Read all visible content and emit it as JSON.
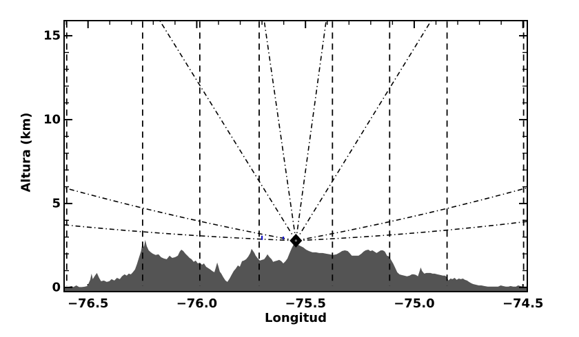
{
  "figure": {
    "background": "#ffffff"
  },
  "chart_data": {
    "type": "area",
    "title": "",
    "xlabel": "Longitud",
    "ylabel": "Altura (km)",
    "xlim": [
      -76.61,
      -74.48
    ],
    "ylim": [
      -0.25,
      15.9
    ],
    "grid": false,
    "x_major_ticks": [
      -76.5,
      -76.0,
      -75.5,
      -75.0,
      -74.5
    ],
    "x_tick_labels": [
      "−76.5",
      "−76.0",
      "−75.5",
      "−75.0",
      "−74.5"
    ],
    "x_minor_step": 0.1,
    "y_major_ticks": [
      0,
      5,
      10,
      15
    ],
    "y_tick_labels": [
      "0",
      "5",
      "10",
      "15"
    ],
    "y_minor_step": 1,
    "colors": {
      "terrain": "#545454",
      "lines": "#000000",
      "blue_marks": "#1515cc",
      "frame": "#000000"
    },
    "radar": {
      "lon": -75.544,
      "alt_km": 2.79,
      "marker": "filled-diamond-star"
    },
    "beams_straight": [
      {
        "top_lon": -76.17,
        "top_alt": 15.9
      },
      {
        "top_lon": -75.69,
        "top_alt": 15.9
      },
      {
        "top_lon": -75.405,
        "top_alt": 15.9
      },
      {
        "top_lon": -74.922,
        "top_alt": 15.9
      }
    ],
    "beams_curved": [
      {
        "end": [
          -76.61,
          5.94
        ],
        "ctrl": [
          -76.08,
          4.06
        ]
      },
      {
        "end": [
          -76.61,
          3.73
        ],
        "ctrl": [
          -76.08,
          3.05
        ]
      },
      {
        "end": [
          -74.48,
          5.94
        ],
        "ctrl": [
          -75.01,
          4.06
        ]
      },
      {
        "end": [
          -74.48,
          3.93
        ],
        "ctrl": [
          -75.01,
          3.1
        ]
      }
    ],
    "vertical_dashed_lons": [
      -76.598,
      -76.249,
      -75.986,
      -75.713,
      -75.376,
      -75.113,
      -74.849,
      -74.497
    ],
    "blue_marks": [
      {
        "lon": -75.7,
        "alt_top": 3.08,
        "alt_bot": 2.83
      },
      {
        "lon": -75.602,
        "alt_top": 3.03,
        "alt_bot": 2.87
      }
    ],
    "terrain_profile": [
      [
        -76.611,
        0.02
      ],
      [
        -76.598,
        0.02
      ],
      [
        -76.586,
        0.04
      ],
      [
        -76.576,
        0.08
      ],
      [
        -76.567,
        0.02
      ],
      [
        -76.554,
        0.12
      ],
      [
        -76.541,
        0.02
      ],
      [
        -76.529,
        0.02
      ],
      [
        -76.516,
        0.04
      ],
      [
        -76.503,
        0.08
      ],
      [
        -76.49,
        0.45
      ],
      [
        -76.484,
        0.82
      ],
      [
        -76.478,
        0.49
      ],
      [
        -76.468,
        0.7
      ],
      [
        -76.459,
        0.86
      ],
      [
        -76.449,
        0.57
      ],
      [
        -76.44,
        0.37
      ],
      [
        -76.427,
        0.41
      ],
      [
        -76.414,
        0.33
      ],
      [
        -76.402,
        0.37
      ],
      [
        -76.392,
        0.49
      ],
      [
        -76.379,
        0.41
      ],
      [
        -76.367,
        0.57
      ],
      [
        -76.354,
        0.49
      ],
      [
        -76.344,
        0.66
      ],
      [
        -76.332,
        0.78
      ],
      [
        -76.322,
        0.7
      ],
      [
        -76.313,
        0.82
      ],
      [
        -76.303,
        0.78
      ],
      [
        -76.294,
        0.9
      ],
      [
        -76.284,
        1.07
      ],
      [
        -76.275,
        1.39
      ],
      [
        -76.265,
        1.8
      ],
      [
        -76.256,
        2.17
      ],
      [
        -76.249,
        2.7
      ],
      [
        -76.243,
        2.38
      ],
      [
        -76.237,
        2.83
      ],
      [
        -76.23,
        2.46
      ],
      [
        -76.221,
        2.21
      ],
      [
        -76.211,
        2.09
      ],
      [
        -76.202,
        2.01
      ],
      [
        -76.189,
        1.93
      ],
      [
        -76.176,
        1.97
      ],
      [
        -76.164,
        1.8
      ],
      [
        -76.151,
        1.72
      ],
      [
        -76.138,
        1.68
      ],
      [
        -76.125,
        1.89
      ],
      [
        -76.113,
        1.76
      ],
      [
        -76.1,
        1.8
      ],
      [
        -76.087,
        1.89
      ],
      [
        -76.078,
        2.13
      ],
      [
        -76.071,
        2.25
      ],
      [
        -76.062,
        2.17
      ],
      [
        -76.052,
        2.01
      ],
      [
        -76.043,
        1.89
      ],
      [
        -76.033,
        1.76
      ],
      [
        -76.024,
        1.68
      ],
      [
        -76.014,
        1.52
      ],
      [
        -76.005,
        1.6
      ],
      [
        -75.995,
        1.43
      ],
      [
        -75.986,
        1.48
      ],
      [
        -75.976,
        1.35
      ],
      [
        -75.967,
        1.43
      ],
      [
        -75.957,
        1.23
      ],
      [
        -75.948,
        1.15
      ],
      [
        -75.938,
        1.07
      ],
      [
        -75.929,
        0.98
      ],
      [
        -75.919,
        0.9
      ],
      [
        -75.913,
        1.15
      ],
      [
        -75.906,
        1.48
      ],
      [
        -75.9,
        1.23
      ],
      [
        -75.894,
        0.94
      ],
      [
        -75.887,
        0.82
      ],
      [
        -75.878,
        0.61
      ],
      [
        -75.868,
        0.41
      ],
      [
        -75.859,
        0.33
      ],
      [
        -75.849,
        0.53
      ],
      [
        -75.84,
        0.74
      ],
      [
        -75.83,
        0.98
      ],
      [
        -75.821,
        1.11
      ],
      [
        -75.811,
        1.31
      ],
      [
        -75.802,
        1.23
      ],
      [
        -75.792,
        1.56
      ],
      [
        -75.783,
        1.6
      ],
      [
        -75.773,
        1.68
      ],
      [
        -75.763,
        1.84
      ],
      [
        -75.754,
        2.05
      ],
      [
        -75.748,
        2.3
      ],
      [
        -75.741,
        2.17
      ],
      [
        -75.735,
        2.05
      ],
      [
        -75.729,
        1.89
      ],
      [
        -75.719,
        1.72
      ],
      [
        -75.71,
        1.6
      ],
      [
        -75.7,
        1.64
      ],
      [
        -75.69,
        1.68
      ],
      [
        -75.681,
        1.84
      ],
      [
        -75.675,
        1.97
      ],
      [
        -75.665,
        1.8
      ],
      [
        -75.656,
        1.68
      ],
      [
        -75.649,
        1.52
      ],
      [
        -75.64,
        1.56
      ],
      [
        -75.63,
        1.6
      ],
      [
        -75.621,
        1.64
      ],
      [
        -75.611,
        1.56
      ],
      [
        -75.602,
        1.43
      ],
      [
        -75.592,
        1.56
      ],
      [
        -75.583,
        1.72
      ],
      [
        -75.573,
        2.05
      ],
      [
        -75.563,
        2.34
      ],
      [
        -75.554,
        2.58
      ],
      [
        -75.544,
        2.7
      ],
      [
        -75.535,
        2.54
      ],
      [
        -75.522,
        2.46
      ],
      [
        -75.51,
        2.38
      ],
      [
        -75.497,
        2.25
      ],
      [
        -75.484,
        2.17
      ],
      [
        -75.468,
        2.09
      ],
      [
        -75.452,
        2.09
      ],
      [
        -75.437,
        2.05
      ],
      [
        -75.421,
        2.05
      ],
      [
        -75.405,
        2.01
      ],
      [
        -75.389,
        1.97
      ],
      [
        -75.373,
        1.93
      ],
      [
        -75.357,
        1.97
      ],
      [
        -75.341,
        2.09
      ],
      [
        -75.332,
        2.17
      ],
      [
        -75.319,
        2.21
      ],
      [
        -75.306,
        2.17
      ],
      [
        -75.297,
        2.05
      ],
      [
        -75.287,
        1.89
      ],
      [
        -75.271,
        1.89
      ],
      [
        -75.256,
        1.89
      ],
      [
        -75.243,
        2.01
      ],
      [
        -75.233,
        2.13
      ],
      [
        -75.224,
        2.21
      ],
      [
        -75.211,
        2.25
      ],
      [
        -75.202,
        2.17
      ],
      [
        -75.192,
        2.21
      ],
      [
        -75.183,
        2.13
      ],
      [
        -75.173,
        2.05
      ],
      [
        -75.163,
        2.13
      ],
      [
        -75.154,
        2.21
      ],
      [
        -75.144,
        2.21
      ],
      [
        -75.135,
        2.13
      ],
      [
        -75.125,
        1.89
      ],
      [
        -75.116,
        1.84
      ],
      [
        -75.11,
        1.72
      ],
      [
        -75.103,
        1.56
      ],
      [
        -75.097,
        1.43
      ],
      [
        -75.087,
        1.15
      ],
      [
        -75.078,
        0.9
      ],
      [
        -75.068,
        0.78
      ],
      [
        -75.059,
        0.74
      ],
      [
        -75.046,
        0.7
      ],
      [
        -75.033,
        0.66
      ],
      [
        -75.021,
        0.7
      ],
      [
        -75.011,
        0.78
      ],
      [
        -75.002,
        0.78
      ],
      [
        -74.992,
        0.74
      ],
      [
        -74.983,
        0.66
      ],
      [
        -74.976,
        0.94
      ],
      [
        -74.97,
        1.19
      ],
      [
        -74.964,
        0.98
      ],
      [
        -74.954,
        0.82
      ],
      [
        -74.944,
        0.86
      ],
      [
        -74.935,
        0.86
      ],
      [
        -74.925,
        0.86
      ],
      [
        -74.916,
        0.82
      ],
      [
        -74.906,
        0.82
      ],
      [
        -74.894,
        0.78
      ],
      [
        -74.881,
        0.74
      ],
      [
        -74.868,
        0.7
      ],
      [
        -74.859,
        0.7
      ],
      [
        -74.849,
        0.61
      ],
      [
        -74.843,
        0.41
      ],
      [
        -74.833,
        0.53
      ],
      [
        -74.824,
        0.49
      ],
      [
        -74.814,
        0.57
      ],
      [
        -74.805,
        0.45
      ],
      [
        -74.795,
        0.53
      ],
      [
        -74.786,
        0.49
      ],
      [
        -74.776,
        0.53
      ],
      [
        -74.767,
        0.45
      ],
      [
        -74.757,
        0.41
      ],
      [
        -74.748,
        0.33
      ],
      [
        -74.738,
        0.25
      ],
      [
        -74.729,
        0.2
      ],
      [
        -74.716,
        0.16
      ],
      [
        -74.703,
        0.12
      ],
      [
        -74.691,
        0.12
      ],
      [
        -74.678,
        0.08
      ],
      [
        -74.662,
        0.05
      ],
      [
        -74.646,
        0.05
      ],
      [
        -74.63,
        0.05
      ],
      [
        -74.614,
        0.05
      ],
      [
        -74.602,
        0.12
      ],
      [
        -74.592,
        0.08
      ],
      [
        -74.579,
        0.05
      ],
      [
        -74.567,
        0.05
      ],
      [
        -74.557,
        0.08
      ],
      [
        -74.545,
        0.05
      ],
      [
        -74.532,
        0.05
      ],
      [
        -74.522,
        0.12
      ],
      [
        -74.513,
        0.08
      ],
      [
        -74.5,
        0.05
      ],
      [
        -74.49,
        0.05
      ],
      [
        -74.478,
        0.05
      ]
    ]
  }
}
